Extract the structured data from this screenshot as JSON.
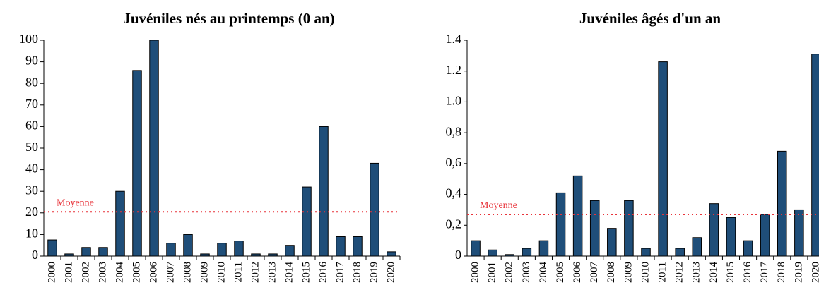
{
  "chart_data": [
    {
      "type": "bar",
      "title": "Juvéniles nés au printemps (0 an)",
      "categories": [
        "2000",
        "2001",
        "2002",
        "2003",
        "2004",
        "2005",
        "2006",
        "2007",
        "2008",
        "2009",
        "2010",
        "2011",
        "2012",
        "2013",
        "2014",
        "2015",
        "2016",
        "2017",
        "2018",
        "2019",
        "2020"
      ],
      "values": [
        7.5,
        1,
        4,
        4,
        30,
        86,
        100,
        6,
        10,
        1,
        6,
        7,
        1,
        1,
        5,
        32,
        60,
        9,
        9,
        43,
        2
      ],
      "color": "#1f4e79",
      "ylim": [
        0,
        100
      ],
      "yticks": [
        0,
        10,
        20,
        30,
        40,
        50,
        60,
        70,
        80,
        90,
        100
      ],
      "mean": 20.5,
      "mean_label": "Moyenne",
      "mean_color": "#e8333a"
    },
    {
      "type": "bar",
      "title": "Juvéniles âgés d'un an",
      "categories": [
        "2000",
        "2001",
        "2002",
        "2003",
        "2004",
        "2005",
        "2006",
        "2007",
        "2008",
        "2009",
        "2010",
        "2011",
        "2012",
        "2013",
        "2014",
        "2015",
        "2016",
        "2017",
        "2018",
        "2019",
        "2020"
      ],
      "values": [
        0.1,
        0.04,
        0.01,
        0.05,
        0.1,
        0.41,
        0.52,
        0.36,
        0.18,
        0.36,
        0.05,
        1.26,
        0.05,
        0.12,
        0.34,
        0.25,
        0.1,
        0.27,
        0.68,
        0.3,
        1.31
      ],
      "color": "#1f4e79",
      "ylim": [
        0,
        1.4
      ],
      "yticks": [
        0,
        {
          "value": 0.2,
          "label": "0,2"
        },
        {
          "value": 0.4,
          "label": "0,4"
        },
        {
          "value": 0.6,
          "label": "0,6"
        },
        {
          "value": 0.8,
          "label": "0,8"
        },
        {
          "value": 1,
          "label": "1.0"
        },
        1.2,
        1.4
      ],
      "mean": 0.27,
      "mean_label": "Moyenne",
      "mean_color": "#e8333a"
    }
  ]
}
